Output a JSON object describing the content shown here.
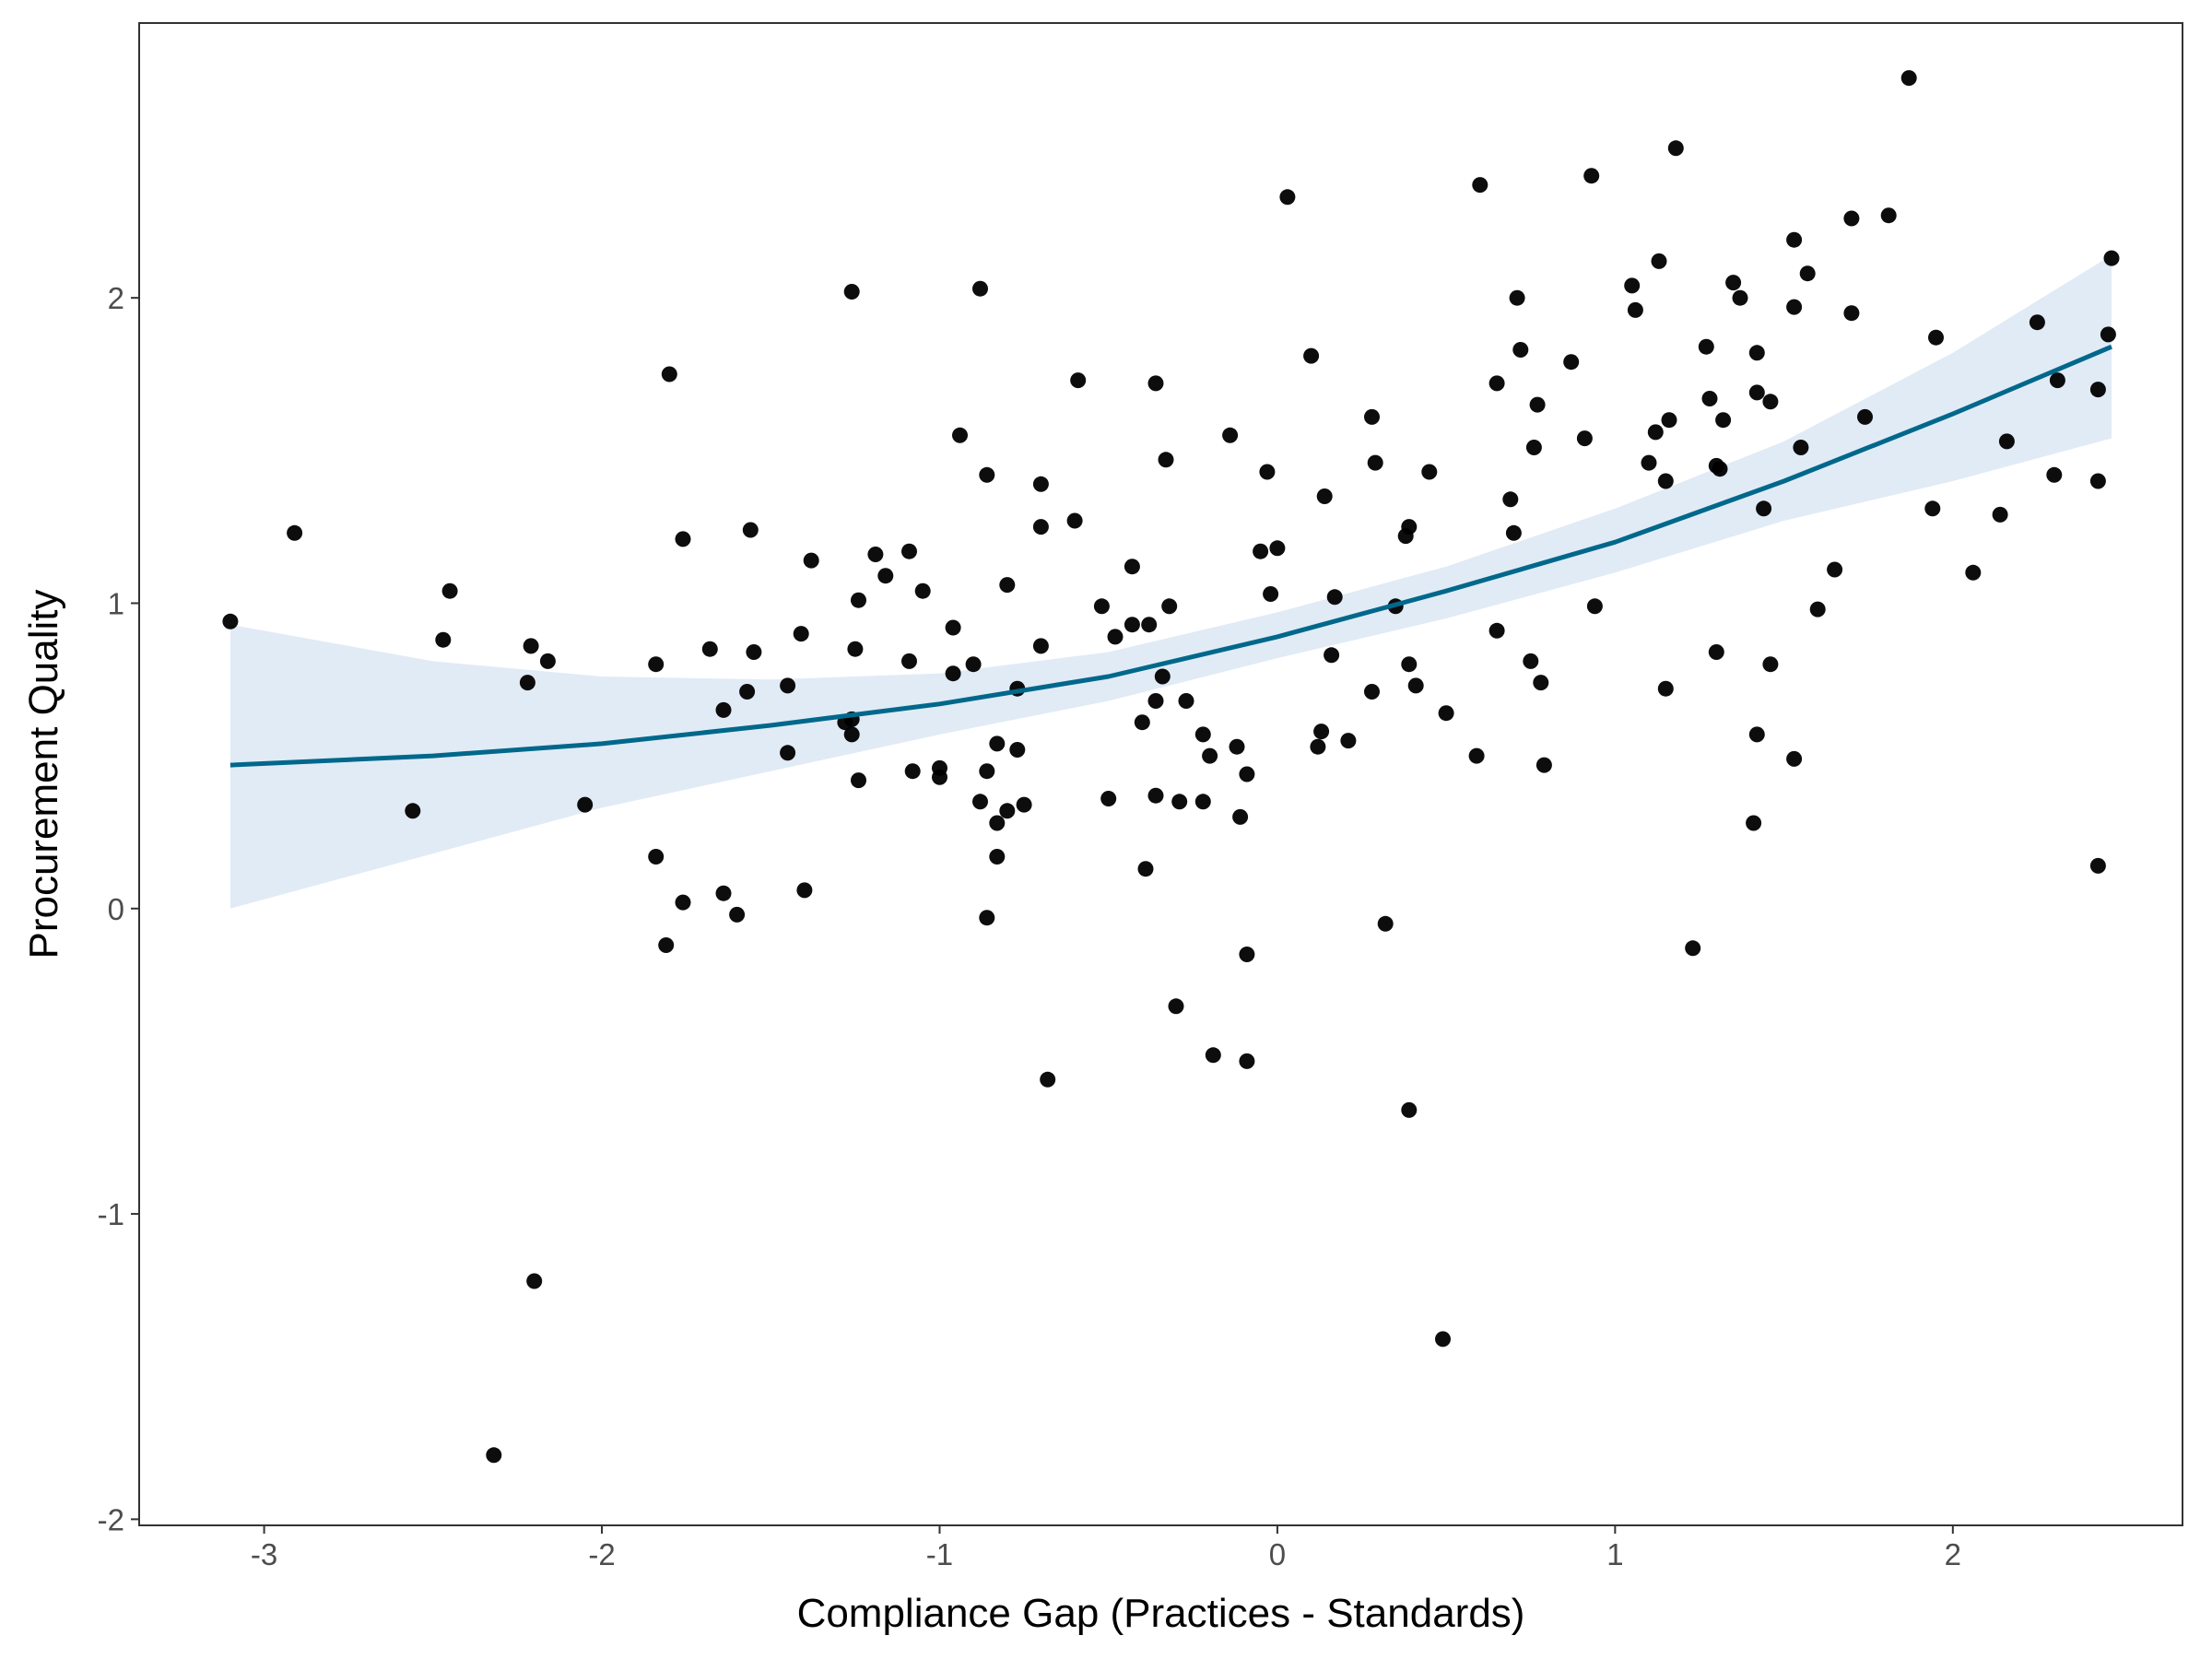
{
  "chart_data": {
    "type": "scatter",
    "title": "",
    "xlabel": "Compliance Gap (Practices - Standards)",
    "ylabel": "Procurement Quality",
    "xlim": [
      -3.37,
      2.68
    ],
    "ylim": [
      -2.02,
      2.9
    ],
    "x_ticks": [
      -3,
      -2,
      -1,
      0,
      1,
      2
    ],
    "x_tick_labels": [
      "-3",
      "-2",
      "-1",
      "0",
      "1",
      "2"
    ],
    "y_ticks": [
      -2,
      -1,
      0,
      1,
      2
    ],
    "y_tick_labels": [
      "-2",
      "-1",
      "0",
      "1",
      "2"
    ],
    "grid": false,
    "colors": {
      "points": "#000000",
      "fit_line": "#00688b",
      "confidence_band": "#dce8f5",
      "panel_border": "#333333",
      "tick_label": "#4d4d4d"
    },
    "fit": {
      "type": "quadratic",
      "x": [
        -3.1,
        -2.5,
        -2.0,
        -1.5,
        -1.0,
        -0.5,
        0.0,
        0.5,
        1.0,
        1.5,
        2.0,
        2.47
      ],
      "y": [
        0.47,
        0.5,
        0.54,
        0.6,
        0.67,
        0.76,
        0.89,
        1.04,
        1.2,
        1.4,
        1.62,
        1.84
      ],
      "ci_lower": [
        0.0,
        0.18,
        0.33,
        0.45,
        0.57,
        0.68,
        0.82,
        0.95,
        1.1,
        1.27,
        1.4,
        1.54
      ],
      "ci_upper": [
        0.93,
        0.81,
        0.76,
        0.75,
        0.77,
        0.84,
        0.97,
        1.12,
        1.31,
        1.53,
        1.82,
        2.14
      ]
    },
    "points": [
      {
        "x": -3.1,
        "y": 0.94
      },
      {
        "x": -2.91,
        "y": 1.23
      },
      {
        "x": -2.56,
        "y": 0.32
      },
      {
        "x": -2.47,
        "y": 0.88
      },
      {
        "x": -2.45,
        "y": 1.04
      },
      {
        "x": -2.32,
        "y": -1.79
      },
      {
        "x": -2.22,
        "y": 0.74
      },
      {
        "x": -2.21,
        "y": 0.86
      },
      {
        "x": -2.2,
        "y": -1.22
      },
      {
        "x": -2.16,
        "y": 0.81
      },
      {
        "x": -2.05,
        "y": 0.34
      },
      {
        "x": -1.84,
        "y": 0.8
      },
      {
        "x": -1.84,
        "y": 0.17
      },
      {
        "x": -1.81,
        "y": -0.12
      },
      {
        "x": -1.8,
        "y": 1.75
      },
      {
        "x": -1.76,
        "y": 1.21
      },
      {
        "x": -1.76,
        "y": 0.02
      },
      {
        "x": -1.68,
        "y": 0.85
      },
      {
        "x": -1.64,
        "y": 0.65
      },
      {
        "x": -1.64,
        "y": 0.05
      },
      {
        "x": -1.6,
        "y": -0.02
      },
      {
        "x": -1.57,
        "y": 0.71
      },
      {
        "x": -1.56,
        "y": 1.24
      },
      {
        "x": -1.55,
        "y": 0.84
      },
      {
        "x": -1.45,
        "y": 0.73
      },
      {
        "x": -1.45,
        "y": 0.51
      },
      {
        "x": -1.41,
        "y": 0.9
      },
      {
        "x": -1.4,
        "y": 0.06
      },
      {
        "x": -1.38,
        "y": 1.14
      },
      {
        "x": -1.28,
        "y": 0.61
      },
      {
        "x": -1.26,
        "y": 2.02
      },
      {
        "x": -1.26,
        "y": 0.62
      },
      {
        "x": -1.26,
        "y": 0.57
      },
      {
        "x": -1.25,
        "y": 0.85
      },
      {
        "x": -1.24,
        "y": 0.42
      },
      {
        "x": -1.24,
        "y": 1.01
      },
      {
        "x": -1.19,
        "y": 1.16
      },
      {
        "x": -1.16,
        "y": 1.09
      },
      {
        "x": -1.09,
        "y": 1.17
      },
      {
        "x": -1.09,
        "y": 0.81
      },
      {
        "x": -1.08,
        "y": 0.45
      },
      {
        "x": -1.05,
        "y": 1.04
      },
      {
        "x": -1.0,
        "y": 0.46
      },
      {
        "x": -1.0,
        "y": 0.43
      },
      {
        "x": -0.96,
        "y": 0.77
      },
      {
        "x": -0.96,
        "y": 0.92
      },
      {
        "x": -0.94,
        "y": 1.55
      },
      {
        "x": -0.9,
        "y": 0.8
      },
      {
        "x": -0.88,
        "y": 2.03
      },
      {
        "x": -0.88,
        "y": 0.35
      },
      {
        "x": -0.86,
        "y": 1.42
      },
      {
        "x": -0.86,
        "y": 0.45
      },
      {
        "x": -0.86,
        "y": -0.03
      },
      {
        "x": -0.83,
        "y": 0.54
      },
      {
        "x": -0.83,
        "y": 0.28
      },
      {
        "x": -0.83,
        "y": 0.17
      },
      {
        "x": -0.8,
        "y": 1.06
      },
      {
        "x": -0.8,
        "y": 0.32
      },
      {
        "x": -0.77,
        "y": 0.52
      },
      {
        "x": -0.77,
        "y": 0.72
      },
      {
        "x": -0.75,
        "y": 0.34
      },
      {
        "x": -0.7,
        "y": 1.25
      },
      {
        "x": -0.7,
        "y": 1.39
      },
      {
        "x": -0.7,
        "y": 0.86
      },
      {
        "x": -0.68,
        "y": -0.56
      },
      {
        "x": -0.6,
        "y": 1.27
      },
      {
        "x": -0.59,
        "y": 1.73
      },
      {
        "x": -0.52,
        "y": 0.99
      },
      {
        "x": -0.5,
        "y": 0.36
      },
      {
        "x": -0.48,
        "y": 0.89
      },
      {
        "x": -0.43,
        "y": 1.12
      },
      {
        "x": -0.43,
        "y": 0.93
      },
      {
        "x": -0.4,
        "y": 0.61
      },
      {
        "x": -0.39,
        "y": 0.13
      },
      {
        "x": -0.38,
        "y": 0.93
      },
      {
        "x": -0.36,
        "y": 1.72
      },
      {
        "x": -0.36,
        "y": 0.68
      },
      {
        "x": -0.36,
        "y": 0.37
      },
      {
        "x": -0.34,
        "y": 0.76
      },
      {
        "x": -0.33,
        "y": 1.47
      },
      {
        "x": -0.32,
        "y": 0.99
      },
      {
        "x": -0.3,
        "y": -0.32
      },
      {
        "x": -0.29,
        "y": 0.35
      },
      {
        "x": -0.27,
        "y": 0.68
      },
      {
        "x": -0.22,
        "y": 0.57
      },
      {
        "x": -0.22,
        "y": 0.35
      },
      {
        "x": -0.2,
        "y": 0.5
      },
      {
        "x": -0.19,
        "y": -0.48
      },
      {
        "x": -0.14,
        "y": 1.55
      },
      {
        "x": -0.12,
        "y": 0.53
      },
      {
        "x": -0.11,
        "y": 0.3
      },
      {
        "x": -0.09,
        "y": 0.44
      },
      {
        "x": -0.09,
        "y": -0.15
      },
      {
        "x": -0.09,
        "y": -0.5
      },
      {
        "x": -0.05,
        "y": 1.17
      },
      {
        "x": -0.03,
        "y": 1.43
      },
      {
        "x": -0.02,
        "y": 1.03
      },
      {
        "x": 0.0,
        "y": 1.18
      },
      {
        "x": 0.03,
        "y": 2.33
      },
      {
        "x": 0.1,
        "y": 1.81
      },
      {
        "x": 0.12,
        "y": 0.53
      },
      {
        "x": 0.13,
        "y": 0.58
      },
      {
        "x": 0.14,
        "y": 1.35
      },
      {
        "x": 0.16,
        "y": 0.83
      },
      {
        "x": 0.17,
        "y": 1.02
      },
      {
        "x": 0.21,
        "y": 0.55
      },
      {
        "x": 0.28,
        "y": 1.61
      },
      {
        "x": 0.28,
        "y": 0.71
      },
      {
        "x": 0.29,
        "y": 1.46
      },
      {
        "x": 0.32,
        "y": -0.05
      },
      {
        "x": 0.35,
        "y": 0.99
      },
      {
        "x": 0.38,
        "y": 1.22
      },
      {
        "x": 0.39,
        "y": 1.25
      },
      {
        "x": 0.39,
        "y": 0.8
      },
      {
        "x": 0.39,
        "y": -0.66
      },
      {
        "x": 0.41,
        "y": 0.73
      },
      {
        "x": 0.45,
        "y": 1.43
      },
      {
        "x": 0.49,
        "y": -1.41
      },
      {
        "x": 0.5,
        "y": 0.64
      },
      {
        "x": 0.59,
        "y": 0.5
      },
      {
        "x": 0.6,
        "y": 2.37
      },
      {
        "x": 0.65,
        "y": 1.72
      },
      {
        "x": 0.65,
        "y": 0.91
      },
      {
        "x": 0.69,
        "y": 1.34
      },
      {
        "x": 0.7,
        "y": 1.23
      },
      {
        "x": 0.71,
        "y": 2.0
      },
      {
        "x": 0.72,
        "y": 1.83
      },
      {
        "x": 0.75,
        "y": 0.81
      },
      {
        "x": 0.76,
        "y": 1.51
      },
      {
        "x": 0.77,
        "y": 1.65
      },
      {
        "x": 0.78,
        "y": 0.74
      },
      {
        "x": 0.79,
        "y": 0.47
      },
      {
        "x": 0.87,
        "y": 1.79
      },
      {
        "x": 0.91,
        "y": 1.54
      },
      {
        "x": 0.93,
        "y": 2.4
      },
      {
        "x": 0.94,
        "y": 0.99
      },
      {
        "x": 1.05,
        "y": 2.04
      },
      {
        "x": 1.06,
        "y": 1.96
      },
      {
        "x": 1.1,
        "y": 1.46
      },
      {
        "x": 1.12,
        "y": 1.56
      },
      {
        "x": 1.13,
        "y": 2.12
      },
      {
        "x": 1.15,
        "y": 1.4
      },
      {
        "x": 1.15,
        "y": 0.72
      },
      {
        "x": 1.16,
        "y": 1.6
      },
      {
        "x": 1.18,
        "y": 2.49
      },
      {
        "x": 1.23,
        "y": -0.13
      },
      {
        "x": 1.27,
        "y": 1.84
      },
      {
        "x": 1.28,
        "y": 1.67
      },
      {
        "x": 1.3,
        "y": 1.45
      },
      {
        "x": 1.31,
        "y": 1.44
      },
      {
        "x": 1.3,
        "y": 0.84
      },
      {
        "x": 1.32,
        "y": 1.6
      },
      {
        "x": 1.35,
        "y": 2.05
      },
      {
        "x": 1.37,
        "y": 2.0
      },
      {
        "x": 1.42,
        "y": 1.82
      },
      {
        "x": 1.42,
        "y": 1.69
      },
      {
        "x": 1.42,
        "y": 0.57
      },
      {
        "x": 1.41,
        "y": 0.28
      },
      {
        "x": 1.44,
        "y": 1.31
      },
      {
        "x": 1.46,
        "y": 1.66
      },
      {
        "x": 1.46,
        "y": 0.8
      },
      {
        "x": 1.53,
        "y": 2.19
      },
      {
        "x": 1.53,
        "y": 1.97
      },
      {
        "x": 1.53,
        "y": 0.49
      },
      {
        "x": 1.55,
        "y": 1.51
      },
      {
        "x": 1.57,
        "y": 2.08
      },
      {
        "x": 1.6,
        "y": 0.98
      },
      {
        "x": 1.65,
        "y": 1.11
      },
      {
        "x": 1.7,
        "y": 2.26
      },
      {
        "x": 1.7,
        "y": 1.95
      },
      {
        "x": 1.74,
        "y": 1.61
      },
      {
        "x": 1.81,
        "y": 2.27
      },
      {
        "x": 1.87,
        "y": 2.72
      },
      {
        "x": 1.94,
        "y": 1.31
      },
      {
        "x": 1.95,
        "y": 1.87
      },
      {
        "x": 2.06,
        "y": 1.1
      },
      {
        "x": 2.14,
        "y": 1.29
      },
      {
        "x": 2.16,
        "y": 1.53
      },
      {
        "x": 2.25,
        "y": 1.92
      },
      {
        "x": 2.3,
        "y": 1.42
      },
      {
        "x": 2.31,
        "y": 1.73
      },
      {
        "x": 2.43,
        "y": 1.7
      },
      {
        "x": 2.43,
        "y": 1.4
      },
      {
        "x": 2.43,
        "y": 0.14
      },
      {
        "x": 2.46,
        "y": 1.88
      },
      {
        "x": 2.47,
        "y": 2.13
      }
    ]
  }
}
